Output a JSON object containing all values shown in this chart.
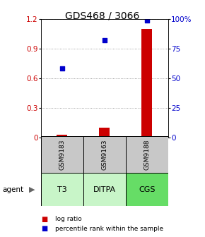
{
  "title": "GDS468 / 3066",
  "categories": [
    "GSM9183",
    "GSM9163",
    "GSM9188"
  ],
  "agent_labels": [
    "T3",
    "DITPA",
    "CGS"
  ],
  "log_ratios": [
    0.03,
    0.1,
    1.1
  ],
  "percentile_ranks": [
    58,
    82,
    99
  ],
  "left_ylim": [
    0,
    1.2
  ],
  "right_ylim": [
    0,
    100
  ],
  "left_yticks": [
    0,
    0.3,
    0.6,
    0.9,
    1.2
  ],
  "right_yticks": [
    0,
    25,
    50,
    75,
    100
  ],
  "right_yticklabels": [
    "0",
    "25",
    "50",
    "75",
    "100%"
  ],
  "bar_color": "#cc0000",
  "dot_color": "#0000cc",
  "sample_box_color": "#c8c8c8",
  "agent_box_colors": [
    "#c8f5c8",
    "#c8f5c8",
    "#66dd66"
  ],
  "background_color": "#ffffff",
  "title_fontsize": 10,
  "tick_fontsize": 7.5,
  "label_fontsize": 7,
  "grid_color": "#888888",
  "bar_width": 0.25
}
